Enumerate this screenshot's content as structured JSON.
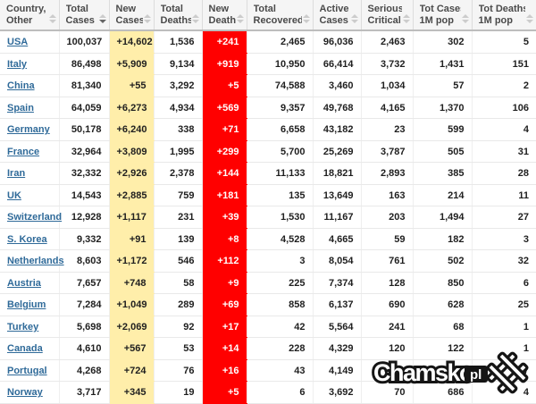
{
  "colors": {
    "header-bg": "#f5f5f5",
    "new-cases-bg": "#FFEEAA",
    "new-deaths-bg": "#FF0000",
    "link": "#2f6a99"
  },
  "table": {
    "columns": [
      {
        "id": "country",
        "lines": [
          "Country,",
          "Other"
        ],
        "sort": "none"
      },
      {
        "id": "total-cases",
        "lines": [
          "Total",
          "Cases"
        ],
        "sort": "desc"
      },
      {
        "id": "new-cases",
        "lines": [
          "New",
          "Cases"
        ],
        "sort": "none"
      },
      {
        "id": "total-deaths",
        "lines": [
          "Total",
          "Deaths"
        ],
        "sort": "none"
      },
      {
        "id": "new-deaths",
        "lines": [
          "New",
          "Deaths"
        ],
        "sort": "none"
      },
      {
        "id": "total-recovered",
        "lines": [
          "Total",
          "Recovered"
        ],
        "sort": "none"
      },
      {
        "id": "active-cases",
        "lines": [
          "Active",
          "Cases"
        ],
        "sort": "none"
      },
      {
        "id": "serious-critical",
        "lines": [
          "Serious,",
          "Critical"
        ],
        "sort": "none"
      },
      {
        "id": "tot-cases-1m",
        "lines": [
          "Tot Cases/",
          "1M pop"
        ],
        "sort": "none"
      },
      {
        "id": "tot-deaths-1m",
        "lines": [
          "Tot Deaths/",
          "1M pop"
        ],
        "sort": "none"
      }
    ],
    "rows": [
      {
        "country": "USA",
        "values": [
          "100,037",
          "+14,602",
          "1,536",
          "+241",
          "2,465",
          "96,036",
          "2,463",
          "302",
          "5"
        ]
      },
      {
        "country": "Italy",
        "values": [
          "86,498",
          "+5,909",
          "9,134",
          "+919",
          "10,950",
          "66,414",
          "3,732",
          "1,431",
          "151"
        ]
      },
      {
        "country": "China",
        "values": [
          "81,340",
          "+55",
          "3,292",
          "+5",
          "74,588",
          "3,460",
          "1,034",
          "57",
          "2"
        ]
      },
      {
        "country": "Spain",
        "values": [
          "64,059",
          "+6,273",
          "4,934",
          "+569",
          "9,357",
          "49,768",
          "4,165",
          "1,370",
          "106"
        ]
      },
      {
        "country": "Germany",
        "values": [
          "50,178",
          "+6,240",
          "338",
          "+71",
          "6,658",
          "43,182",
          "23",
          "599",
          "4"
        ]
      },
      {
        "country": "France",
        "values": [
          "32,964",
          "+3,809",
          "1,995",
          "+299",
          "5,700",
          "25,269",
          "3,787",
          "505",
          "31"
        ]
      },
      {
        "country": "Iran",
        "values": [
          "32,332",
          "+2,926",
          "2,378",
          "+144",
          "11,133",
          "18,821",
          "2,893",
          "385",
          "28"
        ]
      },
      {
        "country": "UK",
        "values": [
          "14,543",
          "+2,885",
          "759",
          "+181",
          "135",
          "13,649",
          "163",
          "214",
          "11"
        ]
      },
      {
        "country": "Switzerland",
        "values": [
          "12,928",
          "+1,117",
          "231",
          "+39",
          "1,530",
          "11,167",
          "203",
          "1,494",
          "27"
        ]
      },
      {
        "country": "S. Korea",
        "values": [
          "9,332",
          "+91",
          "139",
          "+8",
          "4,528",
          "4,665",
          "59",
          "182",
          "3"
        ]
      },
      {
        "country": "Netherlands",
        "values": [
          "8,603",
          "+1,172",
          "546",
          "+112",
          "3",
          "8,054",
          "761",
          "502",
          "32"
        ]
      },
      {
        "country": "Austria",
        "values": [
          "7,657",
          "+748",
          "58",
          "+9",
          "225",
          "7,374",
          "128",
          "850",
          "6"
        ]
      },
      {
        "country": "Belgium",
        "values": [
          "7,284",
          "+1,049",
          "289",
          "+69",
          "858",
          "6,137",
          "690",
          "628",
          "25"
        ]
      },
      {
        "country": "Turkey",
        "values": [
          "5,698",
          "+2,069",
          "92",
          "+17",
          "42",
          "5,564",
          "241",
          "68",
          "1"
        ]
      },
      {
        "country": "Canada",
        "values": [
          "4,610",
          "+567",
          "53",
          "+14",
          "228",
          "4,329",
          "120",
          "122",
          "1"
        ]
      },
      {
        "country": "Portugal",
        "values": [
          "4,268",
          "+724",
          "76",
          "+16",
          "43",
          "4,149",
          "",
          "",
          "7"
        ]
      },
      {
        "country": "Norway",
        "values": [
          "3,717",
          "+345",
          "19",
          "+5",
          "6",
          "3,692",
          "70",
          "686",
          "4"
        ]
      }
    ]
  },
  "watermark": {
    "text": "Chamsko",
    "badge": "pl"
  }
}
